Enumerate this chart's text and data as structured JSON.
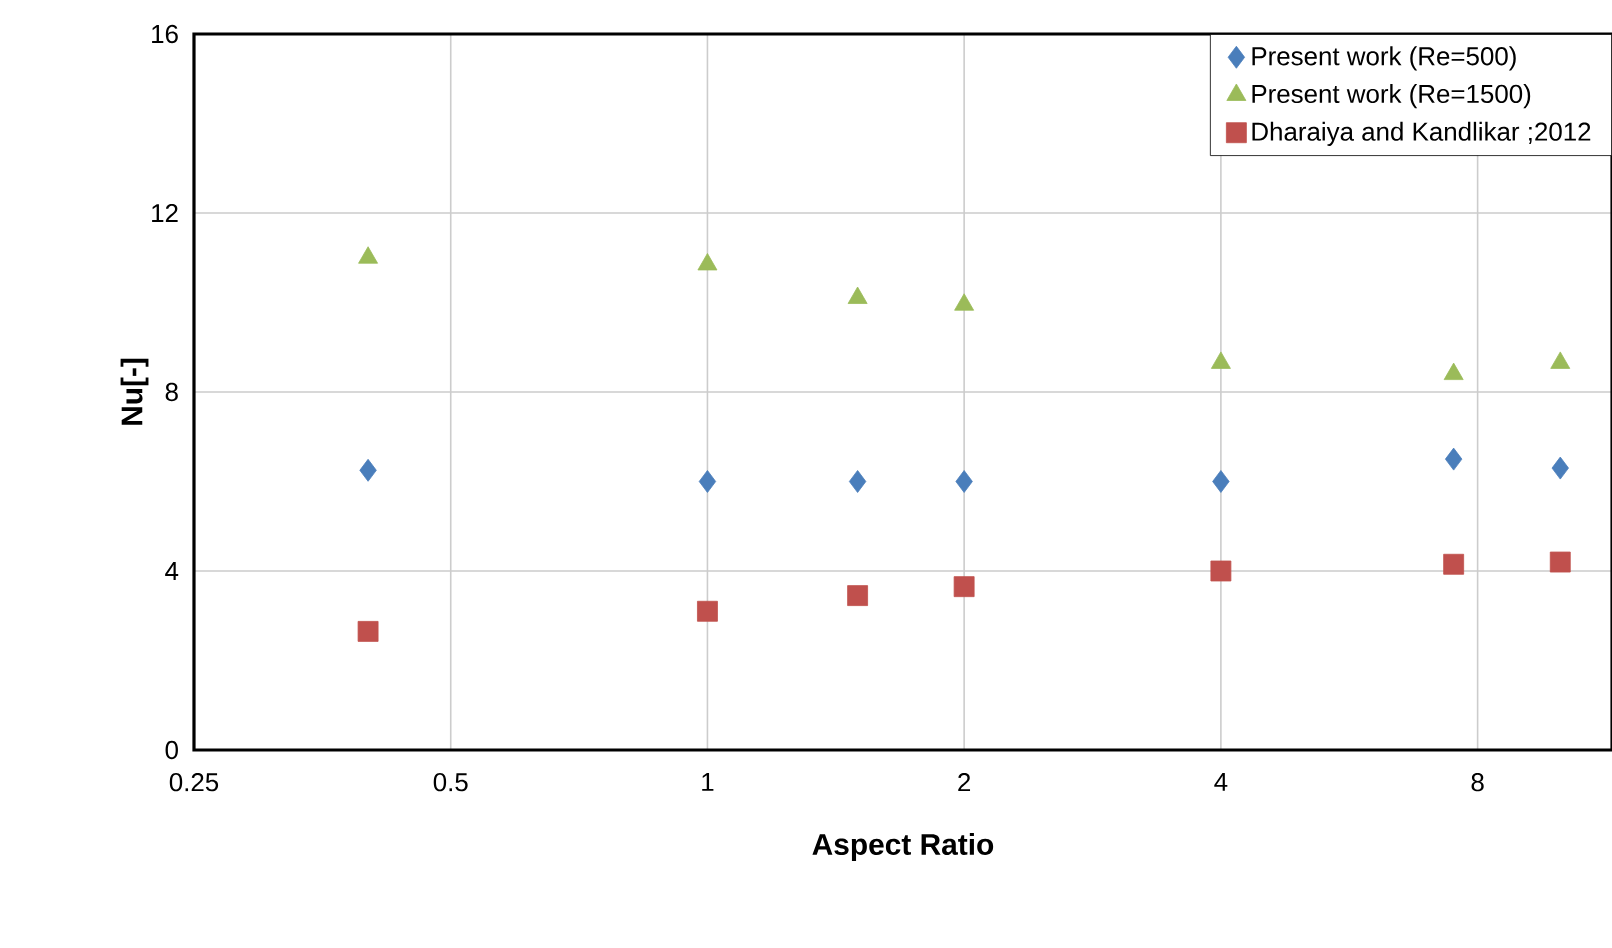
{
  "chart_data": {
    "type": "scatter",
    "xlabel": "Aspect Ratio",
    "ylabel": "Nu[-]",
    "log": "x",
    "xlim": [
      0.25,
      11.5
    ],
    "xticks": [
      0.25,
      0.5,
      1,
      2,
      4,
      8
    ],
    "ylim": [
      0,
      16
    ],
    "yticks": [
      0,
      4,
      8,
      12,
      16
    ],
    "grid": true,
    "legend": "top right",
    "series": [
      {
        "name": "Present work (Re=500)",
        "color": "#4a7ebb",
        "marker": "diamond",
        "x": [
          0.4,
          1,
          1.5,
          2,
          4,
          7.5,
          10
        ],
        "values": [
          6.25,
          6.0,
          6.0,
          6.0,
          6.0,
          6.5,
          6.3
        ]
      },
      {
        "name": "Present work (Re=1500)",
        "color": "#9bbb59",
        "marker": "triangle",
        "x": [
          0.4,
          1,
          1.5,
          2,
          4,
          7.5,
          10
        ],
        "values": [
          11.0,
          10.85,
          10.1,
          9.95,
          8.65,
          8.4,
          8.65
        ]
      },
      {
        "name": "Dharaiya and Kandlikar ;2012",
        "color": "#c0504d",
        "marker": "square",
        "x": [
          0.4,
          1,
          1.5,
          2,
          4,
          7.5,
          10
        ],
        "values": [
          2.65,
          3.1,
          3.45,
          3.65,
          4.0,
          4.15,
          4.2
        ]
      }
    ]
  }
}
